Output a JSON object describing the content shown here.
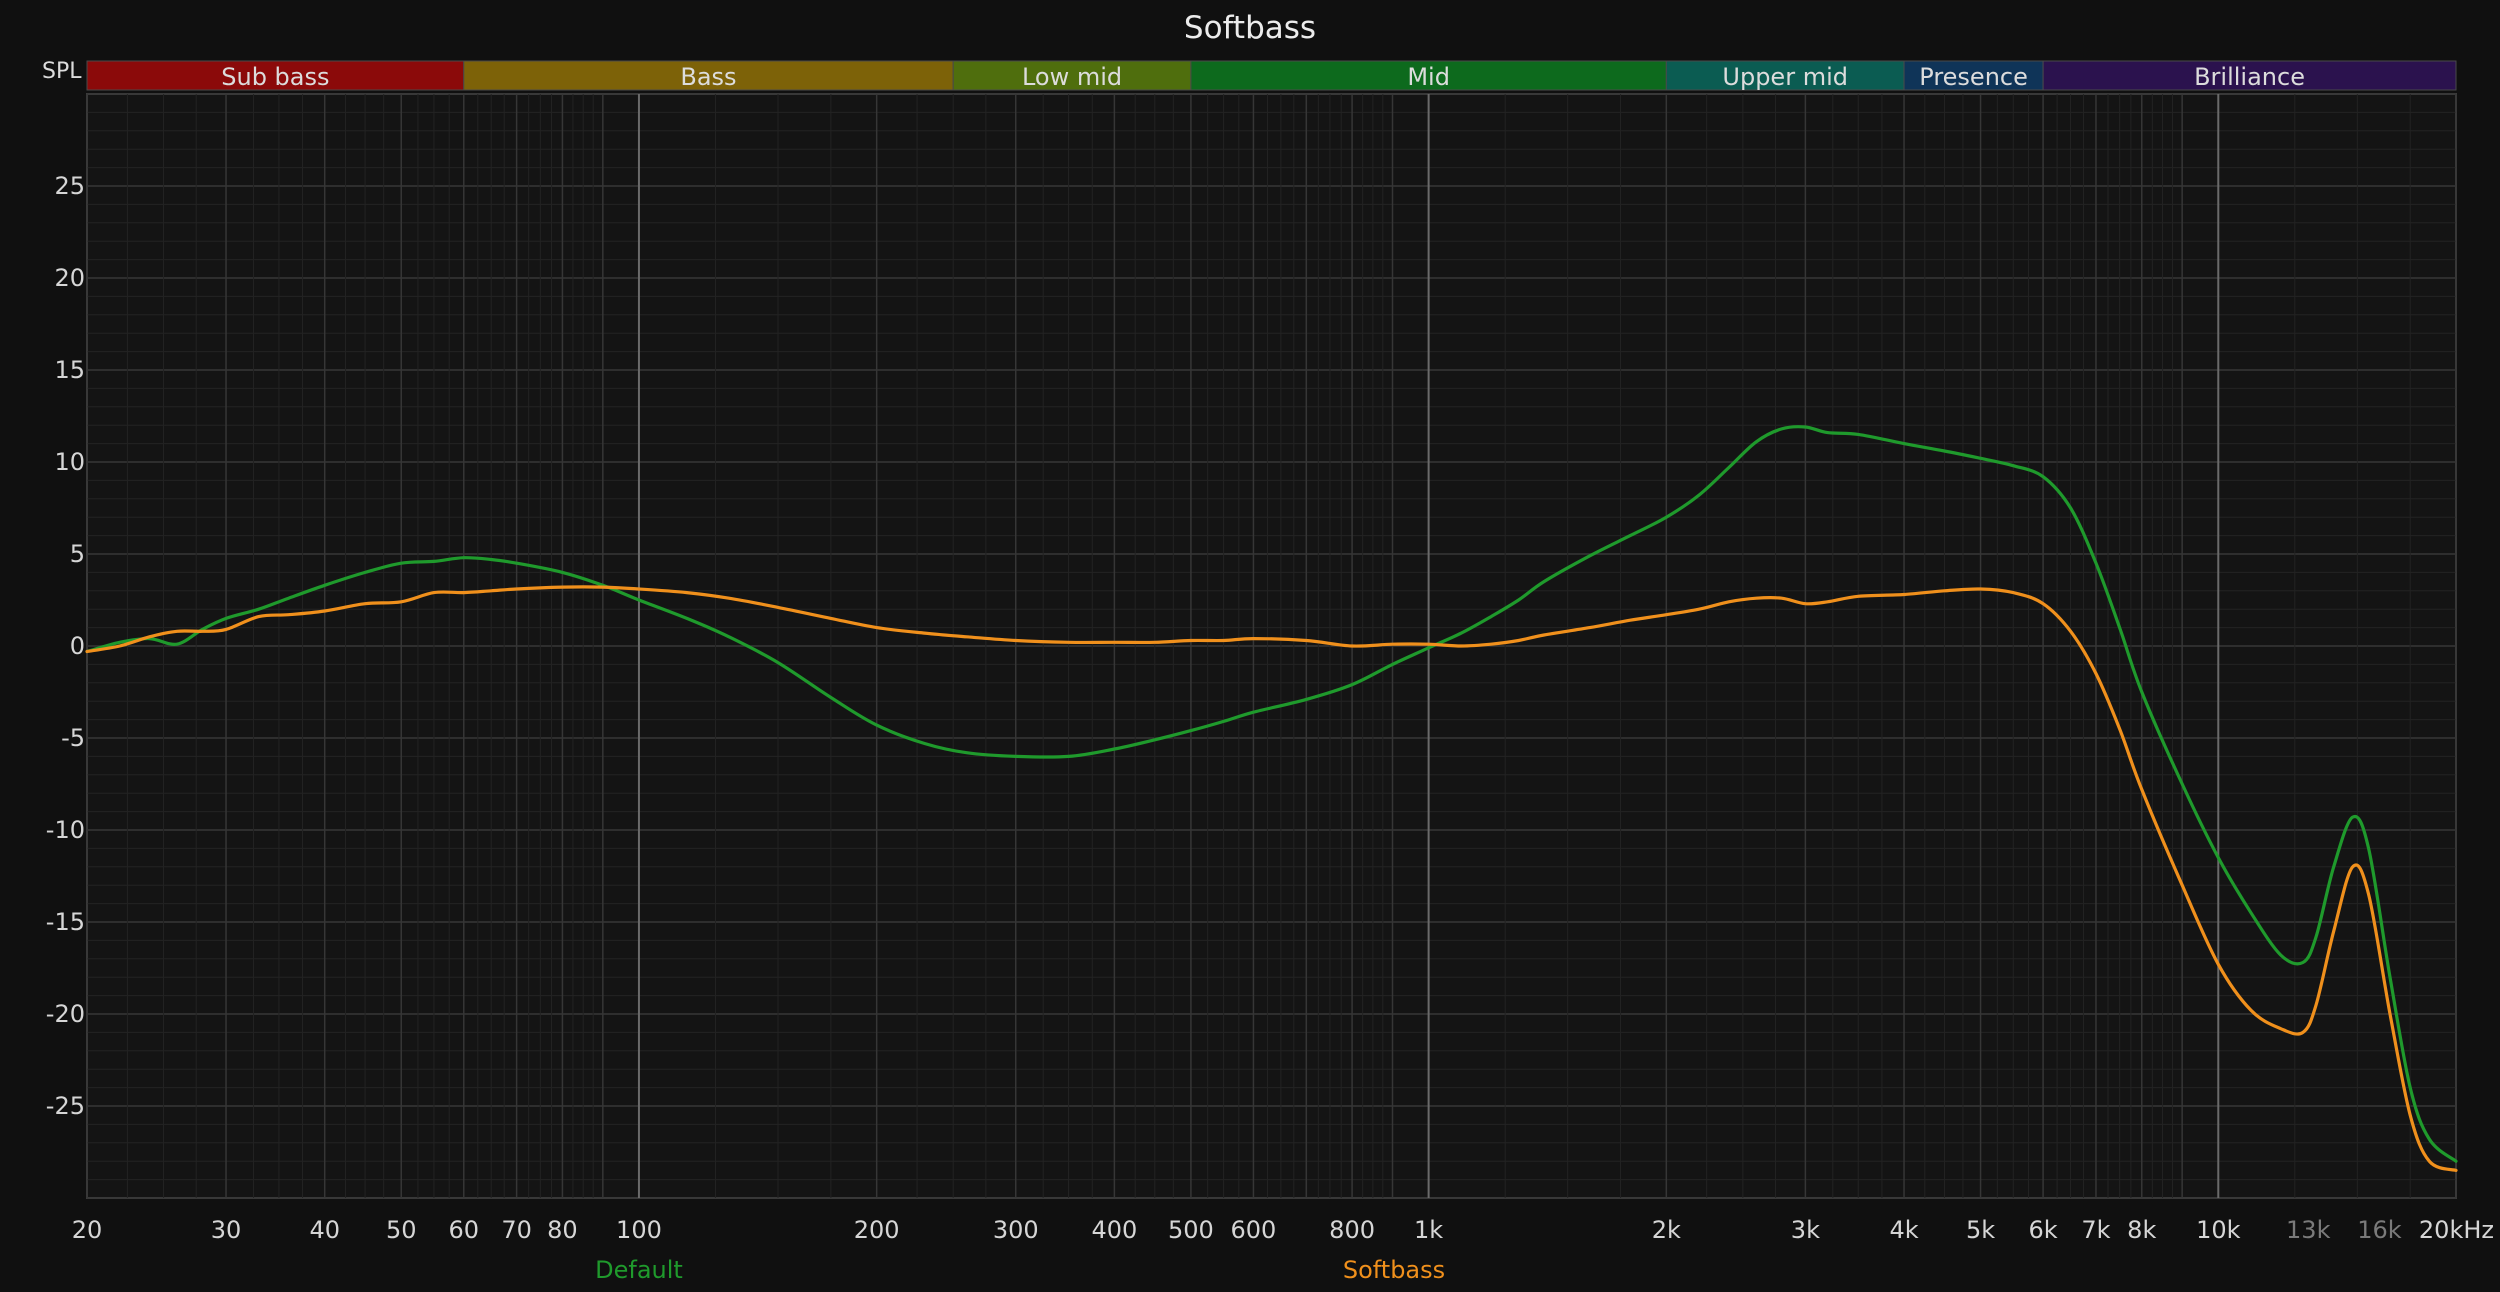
{
  "chart_data": {
    "type": "line",
    "title": "Softbass",
    "ylabel": "SPL",
    "xunit": "kHz",
    "x_scale": "log",
    "xlim": [
      20,
      20000
    ],
    "ylim": [
      -30,
      30
    ],
    "grid": true,
    "legend_placement": "bottom",
    "y_ticks": [
      25,
      20,
      15,
      10,
      5,
      0,
      -5,
      -10,
      -15,
      -20,
      -25
    ],
    "x_ticks": [
      {
        "value": 20,
        "label": "20"
      },
      {
        "value": 30,
        "label": "30"
      },
      {
        "value": 40,
        "label": "40"
      },
      {
        "value": 50,
        "label": "50"
      },
      {
        "value": 60,
        "label": "60"
      },
      {
        "value": 70,
        "label": "70"
      },
      {
        "value": 80,
        "label": "80"
      },
      {
        "value": 100,
        "label": "100"
      },
      {
        "value": 200,
        "label": "200"
      },
      {
        "value": 300,
        "label": "300"
      },
      {
        "value": 400,
        "label": "400"
      },
      {
        "value": 500,
        "label": "500"
      },
      {
        "value": 600,
        "label": "600"
      },
      {
        "value": 800,
        "label": "800"
      },
      {
        "value": 1000,
        "label": "1k"
      },
      {
        "value": 2000,
        "label": "2k"
      },
      {
        "value": 3000,
        "label": "3k"
      },
      {
        "value": 4000,
        "label": "4k"
      },
      {
        "value": 5000,
        "label": "5k"
      },
      {
        "value": 6000,
        "label": "6k"
      },
      {
        "value": 7000,
        "label": "7k"
      },
      {
        "value": 8000,
        "label": "8k"
      },
      {
        "value": 10000,
        "label": "10k"
      },
      {
        "value": 13000,
        "label": "13k",
        "dim": true
      },
      {
        "value": 16000,
        "label": "16k",
        "dim": true
      },
      {
        "value": 20000,
        "label": "20kHz"
      }
    ],
    "bands": [
      {
        "name": "Sub bass",
        "from": 20,
        "to": 60,
        "color": "#8b0a0a"
      },
      {
        "name": "Bass",
        "from": 60,
        "to": 250,
        "color": "#7d6208"
      },
      {
        "name": "Low mid",
        "from": 250,
        "to": 500,
        "color": "#4f6e0d"
      },
      {
        "name": "Mid",
        "from": 500,
        "to": 2000,
        "color": "#0d6a1d"
      },
      {
        "name": "Upper mid",
        "from": 2000,
        "to": 4000,
        "color": "#0b5c52"
      },
      {
        "name": "Presence",
        "from": 4000,
        "to": 6000,
        "color": "#0f3458"
      },
      {
        "name": "Brilliance",
        "from": 6000,
        "to": 20000,
        "color": "#2b124e"
      }
    ],
    "series": [
      {
        "name": "Default",
        "color": "#1f9a2c",
        "points": [
          [
            20,
            -0.3
          ],
          [
            22,
            0.2
          ],
          [
            24,
            0.4
          ],
          [
            26,
            0.1
          ],
          [
            28,
            0.9
          ],
          [
            30,
            1.5
          ],
          [
            33,
            2.0
          ],
          [
            36,
            2.6
          ],
          [
            40,
            3.3
          ],
          [
            45,
            4.0
          ],
          [
            50,
            4.5
          ],
          [
            55,
            4.6
          ],
          [
            60,
            4.8
          ],
          [
            65,
            4.7
          ],
          [
            70,
            4.5
          ],
          [
            80,
            4.0
          ],
          [
            90,
            3.3
          ],
          [
            100,
            2.5
          ],
          [
            115,
            1.5
          ],
          [
            130,
            0.5
          ],
          [
            150,
            -0.9
          ],
          [
            175,
            -2.8
          ],
          [
            200,
            -4.3
          ],
          [
            230,
            -5.3
          ],
          [
            260,
            -5.8
          ],
          [
            300,
            -6.0
          ],
          [
            350,
            -6.0
          ],
          [
            400,
            -5.6
          ],
          [
            450,
            -5.1
          ],
          [
            500,
            -4.6
          ],
          [
            550,
            -4.1
          ],
          [
            600,
            -3.6
          ],
          [
            700,
            -2.9
          ],
          [
            800,
            -2.1
          ],
          [
            900,
            -1.0
          ],
          [
            1000,
            -0.1
          ],
          [
            1100,
            0.7
          ],
          [
            1200,
            1.6
          ],
          [
            1300,
            2.5
          ],
          [
            1400,
            3.5
          ],
          [
            1600,
            4.9
          ],
          [
            1800,
            6.0
          ],
          [
            2000,
            7.0
          ],
          [
            2200,
            8.2
          ],
          [
            2400,
            9.7
          ],
          [
            2600,
            11.1
          ],
          [
            2800,
            11.8
          ],
          [
            3000,
            11.9
          ],
          [
            3200,
            11.6
          ],
          [
            3500,
            11.5
          ],
          [
            4000,
            11.0
          ],
          [
            4500,
            10.6
          ],
          [
            5000,
            10.2
          ],
          [
            5500,
            9.8
          ],
          [
            6000,
            9.2
          ],
          [
            6500,
            7.5
          ],
          [
            7000,
            4.5
          ],
          [
            7500,
            1.0
          ],
          [
            8000,
            -2.5
          ],
          [
            9000,
            -7.5
          ],
          [
            10000,
            -11.5
          ],
          [
            11000,
            -14.5
          ],
          [
            12000,
            -16.8
          ],
          [
            12800,
            -17.2
          ],
          [
            13300,
            -15.8
          ],
          [
            14000,
            -12.0
          ],
          [
            14800,
            -9.3
          ],
          [
            15500,
            -11.0
          ],
          [
            16500,
            -18.0
          ],
          [
            17500,
            -24.0
          ],
          [
            18500,
            -26.8
          ],
          [
            20000,
            -28.0
          ]
        ]
      },
      {
        "name": "Softbass",
        "color": "#f0901c",
        "points": [
          [
            20,
            -0.3
          ],
          [
            22,
            0.0
          ],
          [
            24,
            0.5
          ],
          [
            26,
            0.8
          ],
          [
            28,
            0.8
          ],
          [
            30,
            0.9
          ],
          [
            33,
            1.6
          ],
          [
            36,
            1.7
          ],
          [
            40,
            1.9
          ],
          [
            45,
            2.3
          ],
          [
            50,
            2.4
          ],
          [
            55,
            2.9
          ],
          [
            60,
            2.9
          ],
          [
            65,
            3.0
          ],
          [
            70,
            3.1
          ],
          [
            80,
            3.2
          ],
          [
            90,
            3.2
          ],
          [
            100,
            3.1
          ],
          [
            115,
            2.9
          ],
          [
            130,
            2.6
          ],
          [
            150,
            2.1
          ],
          [
            175,
            1.5
          ],
          [
            200,
            1.0
          ],
          [
            230,
            0.7
          ],
          [
            260,
            0.5
          ],
          [
            300,
            0.3
          ],
          [
            350,
            0.2
          ],
          [
            400,
            0.2
          ],
          [
            450,
            0.2
          ],
          [
            500,
            0.3
          ],
          [
            550,
            0.3
          ],
          [
            600,
            0.4
          ],
          [
            700,
            0.3
          ],
          [
            800,
            0.0
          ],
          [
            900,
            0.1
          ],
          [
            1000,
            0.1
          ],
          [
            1100,
            0.0
          ],
          [
            1200,
            0.1
          ],
          [
            1300,
            0.3
          ],
          [
            1400,
            0.6
          ],
          [
            1600,
            1.0
          ],
          [
            1800,
            1.4
          ],
          [
            2000,
            1.7
          ],
          [
            2200,
            2.0
          ],
          [
            2400,
            2.4
          ],
          [
            2600,
            2.6
          ],
          [
            2800,
            2.6
          ],
          [
            3000,
            2.3
          ],
          [
            3200,
            2.4
          ],
          [
            3500,
            2.7
          ],
          [
            4000,
            2.8
          ],
          [
            4500,
            3.0
          ],
          [
            5000,
            3.1
          ],
          [
            5500,
            2.9
          ],
          [
            6000,
            2.3
          ],
          [
            6500,
            0.8
          ],
          [
            7000,
            -1.5
          ],
          [
            7500,
            -4.5
          ],
          [
            8000,
            -7.8
          ],
          [
            9000,
            -13.0
          ],
          [
            10000,
            -17.3
          ],
          [
            11000,
            -19.8
          ],
          [
            12000,
            -20.8
          ],
          [
            12800,
            -21.0
          ],
          [
            13300,
            -19.5
          ],
          [
            14000,
            -15.5
          ],
          [
            14800,
            -12.0
          ],
          [
            15500,
            -13.5
          ],
          [
            16500,
            -20.0
          ],
          [
            17500,
            -25.5
          ],
          [
            18500,
            -28.0
          ],
          [
            20000,
            -28.5
          ]
        ]
      }
    ]
  }
}
